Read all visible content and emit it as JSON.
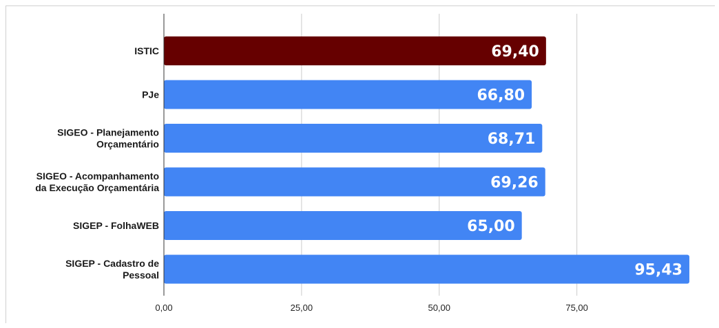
{
  "chart_data": {
    "type": "bar",
    "orientation": "horizontal",
    "categories": [
      [
        "ISTIC"
      ],
      [
        "PJe"
      ],
      [
        "SIGEO - Planejamento",
        "Orçamentário"
      ],
      [
        "SIGEO - Acompanhamento",
        "da Execução Orçamentária"
      ],
      [
        "SIGEP - FolhaWEB"
      ],
      [
        "SIGEP - Cadastro de",
        "Pessoal"
      ]
    ],
    "values": [
      69.4,
      66.8,
      68.71,
      69.26,
      65.0,
      95.43
    ],
    "value_labels": [
      "69,40",
      "66,80",
      "68,71",
      "69,26",
      "65,00",
      "95,43"
    ],
    "bar_colors": [
      "#660000",
      "#4285f4",
      "#4285f4",
      "#4285f4",
      "#4285f4",
      "#4285f4"
    ],
    "xlim": [
      0,
      100
    ],
    "x_ticks": [
      0,
      25,
      50,
      75
    ],
    "x_tick_labels": [
      "0,00",
      "25,00",
      "50,00",
      "75,00"
    ],
    "grid": true,
    "title": "",
    "xlabel": "",
    "ylabel": ""
  }
}
